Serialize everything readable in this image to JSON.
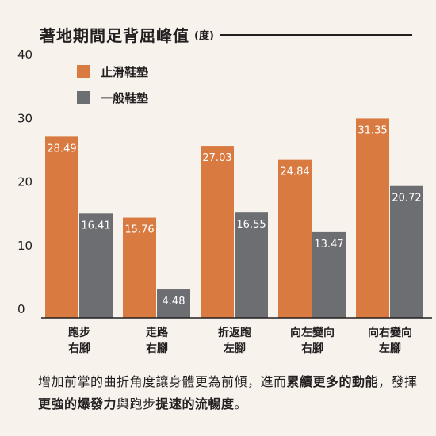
{
  "title": "著地期間足背屈峰值",
  "unit": "(度)",
  "colors": {
    "series_1": "#d97a40",
    "series_2": "#6d6e72",
    "text": "#231f20",
    "background": "#f7f2ec"
  },
  "chart_data": {
    "type": "bar",
    "categories": [
      [
        "跑步",
        "右腳"
      ],
      [
        "走路",
        "右腳"
      ],
      [
        "折返跑",
        "左腳"
      ],
      [
        "向左變向",
        "右腳"
      ],
      [
        "向右變向",
        "左腳"
      ]
    ],
    "series": [
      {
        "name": "止滑鞋墊",
        "values": [
          28.49,
          15.76,
          27.03,
          24.84,
          31.35
        ]
      },
      {
        "name": "一般鞋墊",
        "values": [
          16.41,
          4.48,
          16.55,
          13.47,
          20.72
        ]
      }
    ],
    "yticks": [
      "0",
      "10",
      "20",
      "30",
      "40"
    ],
    "ylim": [
      0,
      40
    ],
    "grid": false,
    "legend": "top-left"
  },
  "caption": [
    {
      "text": "增加前掌的曲折角度讓身體更為前傾，進而",
      "bold": false
    },
    {
      "text": "累續更多的動能",
      "bold": true
    },
    {
      "text": "，發揮",
      "bold": false
    },
    {
      "text": "更強的爆發力",
      "bold": true
    },
    {
      "text": "與跑步",
      "bold": false
    },
    {
      "text": "提速的流暢度",
      "bold": true
    },
    {
      "text": "。",
      "bold": false
    }
  ]
}
